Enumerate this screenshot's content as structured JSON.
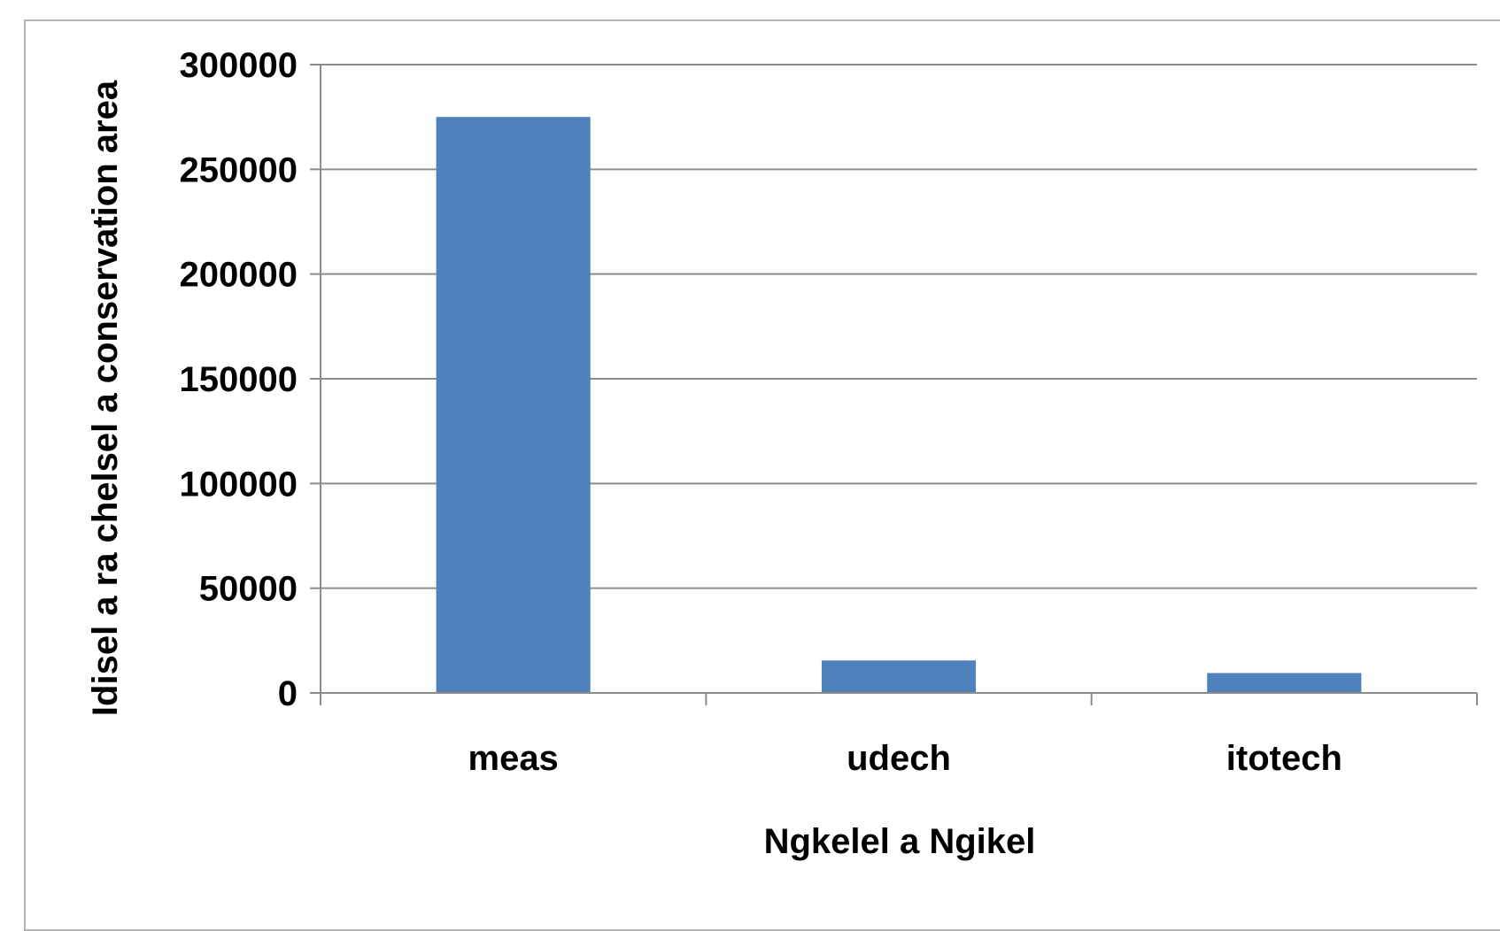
{
  "chart_data": {
    "type": "bar",
    "categories": [
      "meas",
      "udech",
      "itotech"
    ],
    "values": [
      275000,
      15500,
      9500
    ],
    "xlabel": "Ngkelel a Ngikel",
    "ylabel": "Idisel a ra chelsel a conservation area",
    "ylim": [
      0,
      300000
    ],
    "yticks": [
      "0",
      "50000",
      "100000",
      "150000",
      "200000",
      "250000",
      "300000"
    ],
    "grid": true,
    "legend": "none",
    "bar_color": "#4f81bd",
    "grid_color": "#8c8c8c"
  }
}
